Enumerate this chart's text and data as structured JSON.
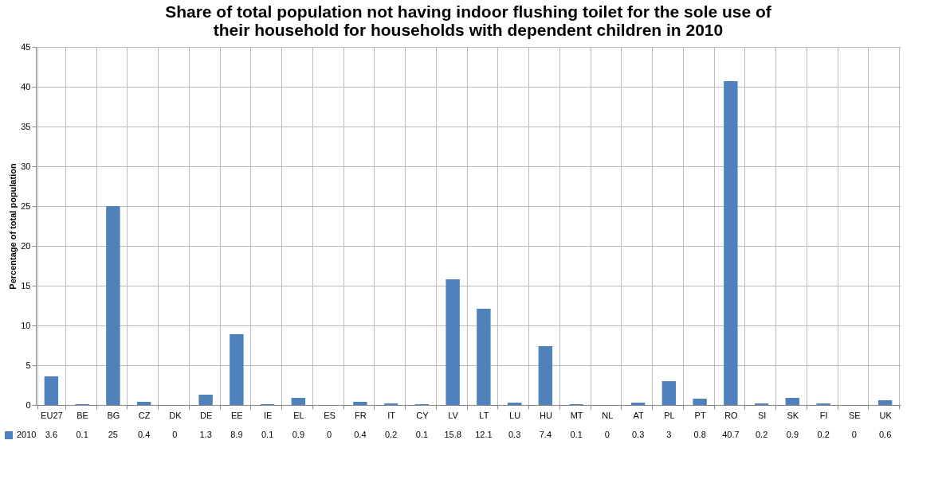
{
  "chart_data": {
    "type": "bar",
    "title": [
      "Share of total population not having indoor flushing toilet for the sole use of",
      "their household for households with dependent children in 2010"
    ],
    "ylabel": "Percentage of total population",
    "categories": [
      "EU27",
      "BE",
      "BG",
      "CZ",
      "DK",
      "DE",
      "EE",
      "IE",
      "EL",
      "ES",
      "FR",
      "IT",
      "CY",
      "LV",
      "LT",
      "LU",
      "HU",
      "MT",
      "NL",
      "AT",
      "PL",
      "PT",
      "RO",
      "SI",
      "SK",
      "FI",
      "SE",
      "UK"
    ],
    "series": [
      {
        "name": "2010",
        "color": "#4f81bd",
        "values": [
          3.6,
          0.1,
          25,
          0.4,
          0,
          1.3,
          8.9,
          0.1,
          0.9,
          0,
          0.4,
          0.2,
          0.1,
          15.8,
          12.1,
          0.3,
          7.4,
          0.1,
          0,
          0.3,
          3,
          0.8,
          40.7,
          0.2,
          0.9,
          0.2,
          0,
          0.6
        ]
      }
    ],
    "ylim": [
      0,
      45
    ],
    "yticks": [
      0,
      5,
      10,
      15,
      20,
      25,
      30,
      35,
      40,
      45
    ],
    "grid": "y",
    "legend": "bottom left",
    "data_labels": true
  }
}
